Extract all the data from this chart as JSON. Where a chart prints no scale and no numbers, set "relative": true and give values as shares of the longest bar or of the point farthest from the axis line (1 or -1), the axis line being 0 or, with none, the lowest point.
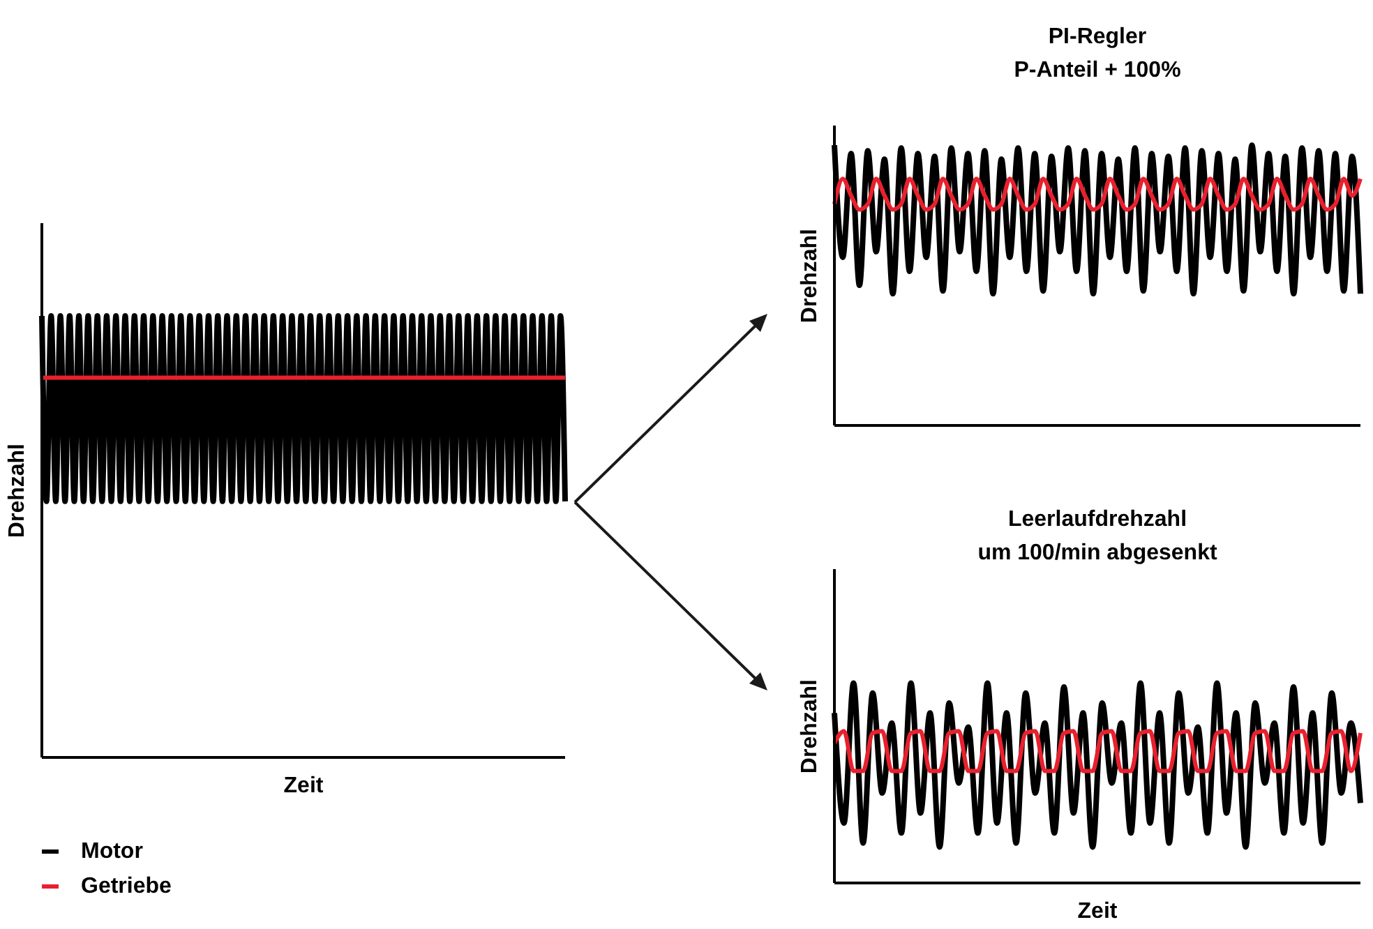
{
  "chart_data": [
    {
      "type": "line",
      "relative": true,
      "xlabel": "Zeit",
      "ylabel": "Drehzahl",
      "legend": "bottom left",
      "categories": [
        null,
        null,
        null,
        null,
        null,
        null,
        null,
        null,
        null,
        null,
        null,
        null,
        null,
        null,
        null,
        null,
        null,
        null,
        null,
        null,
        null,
        null,
        null,
        null,
        null,
        null,
        null,
        null,
        null,
        null,
        null,
        null,
        null,
        null,
        null,
        null,
        null,
        null,
        null,
        null,
        null,
        null,
        null,
        null,
        null,
        null,
        null,
        null,
        null,
        null,
        null,
        null,
        null,
        null,
        null,
        null,
        null,
        null,
        null,
        null,
        null,
        null,
        null,
        null,
        null,
        null,
        null,
        null,
        null,
        null,
        null,
        null,
        null,
        null,
        null,
        null,
        null,
        null,
        null,
        null,
        null,
        null,
        null,
        null,
        null,
        null,
        null,
        null,
        null,
        null,
        null,
        null,
        null,
        null,
        null,
        null,
        null,
        null,
        null,
        null,
        null,
        null,
        null,
        null,
        null,
        null,
        null,
        null,
        null,
        null,
        null,
        null,
        null,
        null
      ],
      "series": [
        {
          "name": "Motor",
          "color": "#000000",
          "values": [
            1,
            0.58,
            1,
            0.58,
            1,
            0.58,
            1,
            0.58,
            1,
            0.58,
            1,
            0.58,
            1,
            0.58,
            1,
            0.58,
            1,
            0.58,
            1,
            0.58,
            1,
            0.58,
            1,
            0.58,
            1,
            0.58,
            1,
            0.58,
            1,
            0.58,
            1,
            0.58,
            1,
            0.58,
            1,
            0.58,
            1,
            0.58,
            1,
            0.58,
            1,
            0.58,
            1,
            0.58,
            1,
            0.58,
            1,
            0.58,
            1,
            0.58,
            1,
            0.58,
            1,
            0.58,
            1,
            0.58,
            1,
            0.58,
            1,
            0.58,
            1,
            0.58,
            1,
            0.58,
            1,
            0.58,
            1,
            0.58,
            1,
            0.58,
            1,
            0.58,
            1,
            0.58,
            1,
            0.58,
            1,
            0.58,
            1,
            0.58,
            1,
            0.58,
            1,
            0.58,
            1,
            0.58,
            1,
            0.58,
            1,
            0.58,
            1,
            0.58,
            1,
            0.58,
            1,
            0.58,
            1,
            0.58,
            1,
            0.58,
            1,
            0.58,
            1,
            0.58,
            1,
            0.58,
            1,
            0.58,
            1,
            0.58,
            1,
            0.58,
            1,
            0.58
          ]
        },
        {
          "name": "Getriebe",
          "color": "#e8212e",
          "values": [
            0.86,
            0.86,
            0.86,
            0.86,
            0.86,
            0.86,
            0.86,
            0.86,
            0.86,
            0.86,
            0.86,
            0.86,
            0.86,
            0.86,
            0.86,
            0.86,
            0.86,
            0.86,
            0.86,
            0.86,
            0.86,
            0.86,
            0.86,
            0.86,
            0.86,
            0.86,
            0.86,
            0.86,
            0.86,
            0.86,
            0.86,
            0.86,
            0.86,
            0.86,
            0.86,
            0.86,
            0.86,
            0.86,
            0.86,
            0.86,
            0.86,
            0.86,
            0.86,
            0.86,
            0.86,
            0.86,
            0.86,
            0.86,
            0.86,
            0.86,
            0.86,
            0.86,
            0.86,
            0.86,
            0.86,
            0.86,
            0.86,
            0.86,
            0.86,
            0.86,
            0.86,
            0.86,
            0.86,
            0.86,
            0.86,
            0.86,
            0.86,
            0.86,
            0.86,
            0.86,
            0.86,
            0.86,
            0.86,
            0.86,
            0.86,
            0.86,
            0.86,
            0.86,
            0.86,
            0.86,
            0.86,
            0.86,
            0.86,
            0.86,
            0.86,
            0.86,
            0.86,
            0.86,
            0.86,
            0.86,
            0.86,
            0.86,
            0.86,
            0.86,
            0.86,
            0.86,
            0.86,
            0.86,
            0.86,
            0.86,
            0.86,
            0.86,
            0.86,
            0.86,
            0.86,
            0.86,
            0.86,
            0.86,
            0.86,
            0.86,
            0.86,
            0.86,
            0.86,
            0.86
          ]
        }
      ]
    },
    {
      "type": "line",
      "relative": true,
      "title": "PI-Regler\nP-Anteil + 100%",
      "ylabel": "Drehzahl",
      "categories": [
        null,
        null,
        null,
        null,
        null,
        null,
        null,
        null,
        null,
        null,
        null,
        null,
        null,
        null,
        null,
        null,
        null,
        null,
        null,
        null,
        null,
        null,
        null,
        null,
        null,
        null,
        null,
        null,
        null,
        null,
        null,
        null,
        null,
        null,
        null,
        null,
        null,
        null,
        null,
        null,
        null,
        null,
        null,
        null,
        null,
        null,
        null,
        null,
        null,
        null,
        null,
        null,
        null,
        null,
        null,
        null,
        null,
        null,
        null,
        null,
        null,
        null,
        null,
        null
      ],
      "series": [
        {
          "color": "#000000",
          "values": [
            1,
            0.6,
            0.97,
            0.5,
            0.98,
            0.62,
            0.95,
            0.47,
            0.99,
            0.55,
            0.97,
            0.6,
            0.96,
            0.48,
            0.99,
            0.62,
            0.97,
            0.55,
            0.98,
            0.47,
            0.95,
            0.6,
            0.99,
            0.55,
            0.97,
            0.48,
            0.96,
            0.62,
            0.99,
            0.55,
            0.98,
            0.47,
            0.97,
            0.6,
            0.95,
            0.55,
            0.99,
            0.48,
            0.97,
            0.62,
            0.96,
            0.55,
            0.99,
            0.47,
            0.98,
            0.6,
            0.97,
            0.55,
            0.95,
            0.48,
            1,
            0.62,
            0.97,
            0.55,
            0.96,
            0.47,
            0.99,
            0.6,
            0.98,
            0.55,
            0.97,
            0.48,
            0.96,
            0.47
          ]
        },
        {
          "color": "#e8212e",
          "values": [
            0.79,
            0.88,
            0.82,
            0.77,
            0.79,
            0.88,
            0.82,
            0.77,
            0.79,
            0.88,
            0.82,
            0.77,
            0.79,
            0.88,
            0.82,
            0.77,
            0.79,
            0.88,
            0.82,
            0.77,
            0.79,
            0.88,
            0.82,
            0.77,
            0.79,
            0.88,
            0.82,
            0.77,
            0.79,
            0.88,
            0.82,
            0.77,
            0.79,
            0.88,
            0.82,
            0.77,
            0.79,
            0.88,
            0.82,
            0.77,
            0.79,
            0.88,
            0.82,
            0.77,
            0.79,
            0.88,
            0.82,
            0.77,
            0.79,
            0.88,
            0.82,
            0.77,
            0.79,
            0.88,
            0.82,
            0.77,
            0.79,
            0.88,
            0.82,
            0.77,
            0.79,
            0.88,
            0.82,
            0.88
          ]
        }
      ]
    },
    {
      "type": "line",
      "relative": true,
      "title": "Leerlaufdrehzahl\num 100/min abgesenkt",
      "xlabel": "Zeit",
      "ylabel": "Drehzahl",
      "categories": [
        null,
        null,
        null,
        null,
        null,
        null,
        null,
        null,
        null,
        null,
        null,
        null,
        null,
        null,
        null,
        null,
        null,
        null,
        null,
        null,
        null,
        null,
        null,
        null,
        null,
        null,
        null,
        null,
        null,
        null,
        null,
        null,
        null,
        null,
        null,
        null,
        null,
        null,
        null,
        null,
        null,
        null,
        null,
        null,
        null,
        null,
        null,
        null,
        null,
        null,
        null,
        null,
        null,
        null,
        null,
        null
      ],
      "series": [
        {
          "color": "#000000",
          "values": [
            0.85,
            0.3,
            1,
            0.2,
            0.95,
            0.45,
            0.8,
            0.25,
            1,
            0.35,
            0.85,
            0.18,
            0.9,
            0.5,
            0.78,
            0.25,
            1,
            0.3,
            0.85,
            0.2,
            0.95,
            0.45,
            0.8,
            0.25,
            0.98,
            0.35,
            0.85,
            0.18,
            0.9,
            0.5,
            0.8,
            0.25,
            1,
            0.3,
            0.85,
            0.2,
            0.95,
            0.45,
            0.78,
            0.25,
            1,
            0.35,
            0.85,
            0.18,
            0.9,
            0.5,
            0.8,
            0.25,
            0.98,
            0.3,
            0.85,
            0.2,
            0.95,
            0.45,
            0.8,
            0.4
          ]
        },
        {
          "color": "#e8212e",
          "values": [
            0.7,
            0.76,
            0.56,
            0.56,
            0.75,
            0.76,
            0.56,
            0.56,
            0.75,
            0.76,
            0.56,
            0.56,
            0.75,
            0.76,
            0.56,
            0.56,
            0.75,
            0.76,
            0.56,
            0.56,
            0.75,
            0.76,
            0.56,
            0.56,
            0.75,
            0.76,
            0.56,
            0.56,
            0.75,
            0.76,
            0.56,
            0.56,
            0.75,
            0.76,
            0.56,
            0.56,
            0.75,
            0.76,
            0.56,
            0.56,
            0.75,
            0.76,
            0.56,
            0.56,
            0.75,
            0.76,
            0.56,
            0.56,
            0.75,
            0.76,
            0.56,
            0.56,
            0.75,
            0.76,
            0.56,
            0.75
          ]
        }
      ]
    }
  ]
}
